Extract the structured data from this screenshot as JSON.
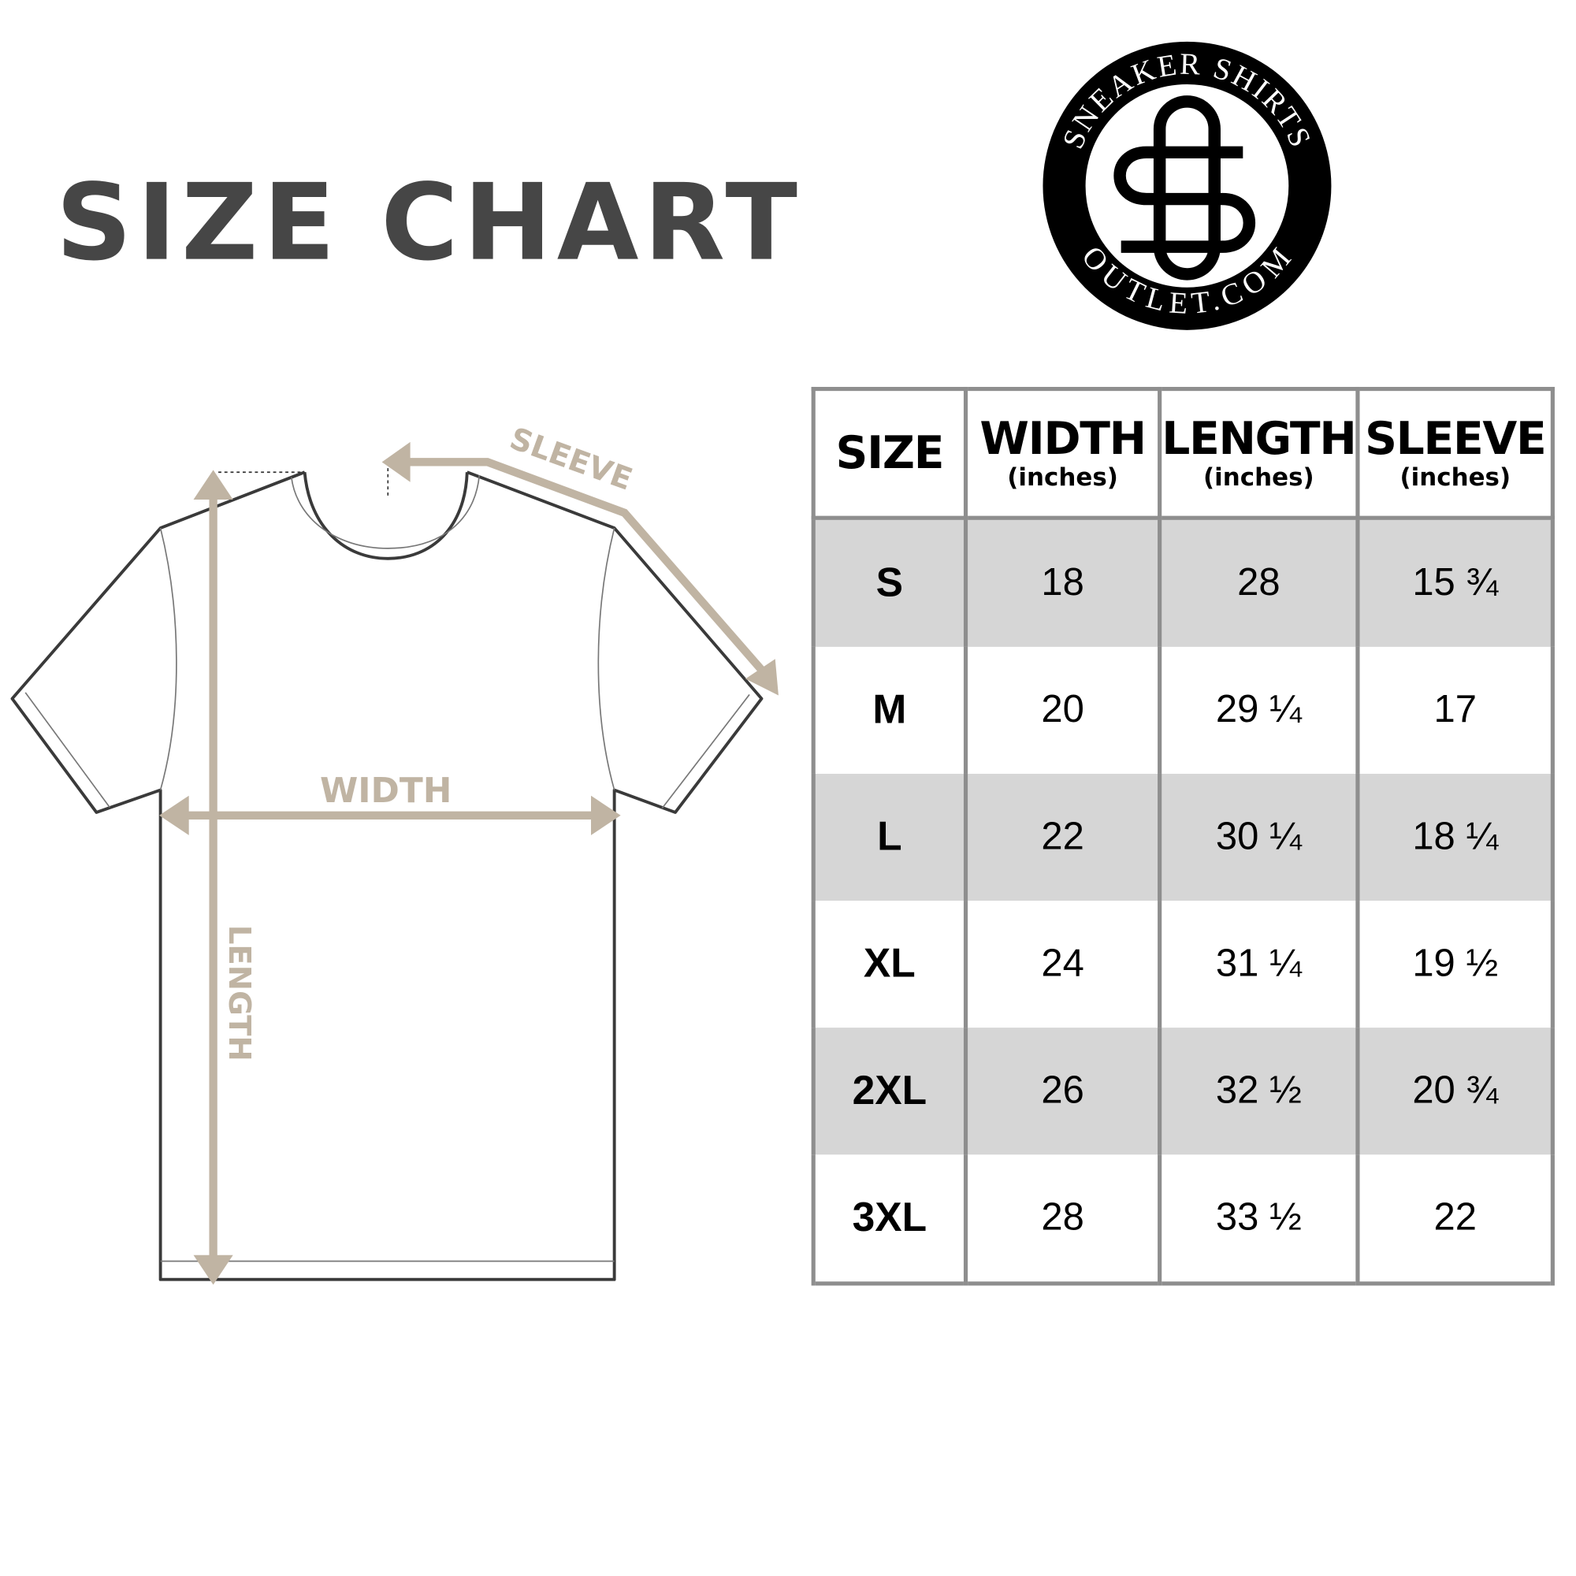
{
  "title": {
    "word1": "SIZE",
    "word2": "CHART"
  },
  "logo": {
    "top_text": "SNEAKER SHIRTS",
    "bottom_text": "OUTLET.COM",
    "monogram": "SO"
  },
  "diagram": {
    "sleeve_label": "SLEEVE",
    "width_label": "WIDTH",
    "length_label": "LENGTH",
    "arrow_color": "#c0b4a3"
  },
  "table": {
    "headers": [
      {
        "label": "SIZE",
        "unit": ""
      },
      {
        "label": "WIDTH",
        "unit": "(inches)"
      },
      {
        "label": "LENGTH",
        "unit": "(inches)"
      },
      {
        "label": "SLEEVE",
        "unit": "(inches)"
      }
    ],
    "rows": [
      [
        "S",
        "18",
        "28",
        "15 ¾"
      ],
      [
        "M",
        "20",
        "29 ¼",
        "17"
      ],
      [
        "L",
        "22",
        "30 ¼",
        "18 ¼"
      ],
      [
        "XL",
        "24",
        "31 ¼",
        "19 ½"
      ],
      [
        "2XL",
        "26",
        "32 ½",
        "20 ¾"
      ],
      [
        "3XL",
        "28",
        "33 ½",
        "22"
      ]
    ]
  }
}
